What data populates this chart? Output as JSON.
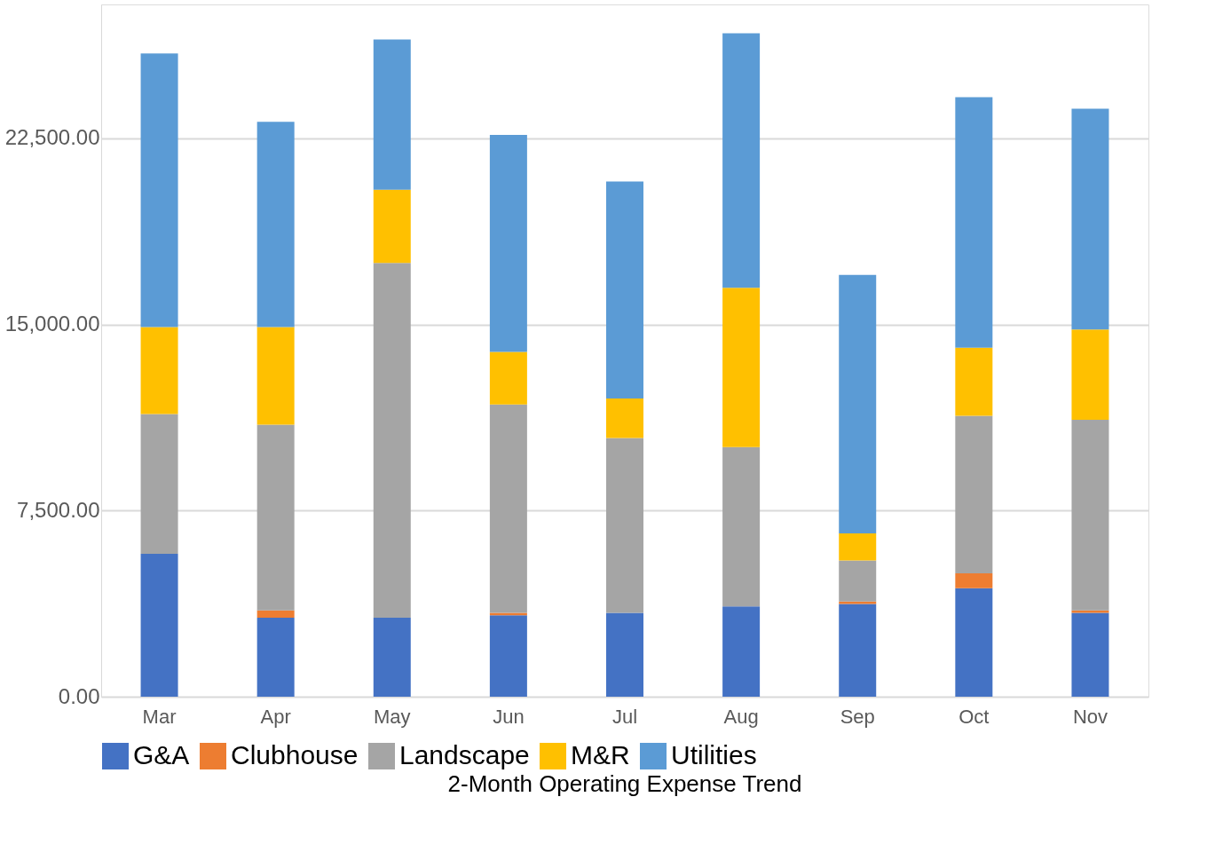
{
  "chart_data": {
    "type": "bar",
    "title": "2-Month Operating Expense Trend",
    "stacked": true,
    "categories": [
      "Mar",
      "Apr",
      "May",
      "Jun",
      "Jul",
      "Aug",
      "Sep",
      "Oct",
      "Nov"
    ],
    "series": [
      {
        "name": "G&A",
        "color": "#4472c4",
        "values": [
          5760,
          3180,
          3180,
          3280,
          3380,
          3640,
          3740,
          4370,
          3380
        ]
      },
      {
        "name": "Clubhouse",
        "color": "#ed7d31",
        "values": [
          0,
          300,
          0,
          100,
          0,
          0,
          100,
          600,
          100
        ]
      },
      {
        "name": "Landscape",
        "color": "#a5a5a5",
        "values": [
          5630,
          7480,
          14300,
          8400,
          7050,
          6420,
          1650,
          6350,
          7680
        ]
      },
      {
        "name": "M&R",
        "color": "#ffc000",
        "values": [
          3510,
          3940,
          2950,
          2120,
          1590,
          6420,
          1090,
          2750,
          3640
        ]
      },
      {
        "name": "Utilities",
        "color": "#5b9bd5",
        "values": [
          11020,
          8270,
          6060,
          8740,
          8740,
          10260,
          10420,
          10090,
          8900
        ]
      }
    ],
    "ylim": [
      0,
      27900
    ],
    "yticks": [
      {
        "value": 0,
        "label": "0.00"
      },
      {
        "value": 7500,
        "label": "7,500.00"
      },
      {
        "value": 15000,
        "label": "15,000.00"
      },
      {
        "value": 22500,
        "label": "22,500.00"
      }
    ],
    "grid": "y",
    "legend": "bottom"
  }
}
